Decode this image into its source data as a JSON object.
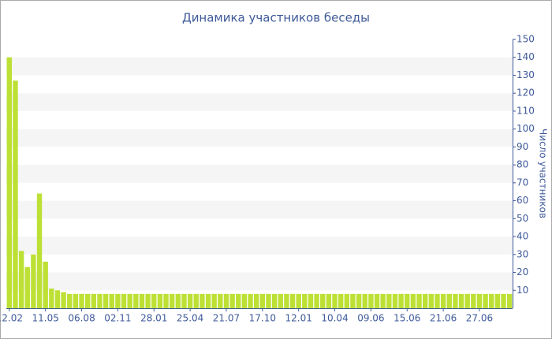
{
  "chart_data": {
    "type": "bar",
    "title": "Динамика участников беседы",
    "y_label": "Число участников",
    "categories": [
      "12.02",
      null,
      null,
      null,
      null,
      null,
      "11.05",
      null,
      null,
      null,
      null,
      null,
      "06.08",
      null,
      null,
      null,
      null,
      null,
      "02.11",
      null,
      null,
      null,
      null,
      null,
      "28.01",
      null,
      null,
      null,
      null,
      null,
      "25.04",
      null,
      null,
      null,
      null,
      null,
      "21.07",
      null,
      null,
      null,
      null,
      null,
      "17.10",
      null,
      null,
      null,
      null,
      null,
      "12.01",
      null,
      null,
      null,
      null,
      null,
      "10.04",
      null,
      null,
      null,
      null,
      null,
      "09.06",
      null,
      null,
      null,
      null,
      null,
      "15.06",
      null,
      null,
      null,
      null,
      null,
      "21.06",
      null,
      null,
      null,
      null,
      null,
      "27.06",
      null,
      null,
      null,
      null,
      null
    ],
    "values": [
      140,
      127,
      32,
      23,
      30,
      64,
      26,
      11,
      10,
      9,
      8,
      8,
      8,
      8,
      8,
      8,
      8,
      8,
      8,
      8,
      8,
      8,
      8,
      8,
      8,
      8,
      8,
      8,
      8,
      8,
      8,
      8,
      8,
      8,
      8,
      8,
      8,
      8,
      8,
      8,
      8,
      8,
      8,
      8,
      8,
      8,
      8,
      8,
      8,
      8,
      8,
      8,
      8,
      8,
      8,
      8,
      8,
      8,
      8,
      8,
      8,
      8,
      8,
      8,
      8,
      8,
      8,
      8,
      8,
      8,
      8,
      8,
      8,
      8,
      8,
      8,
      8,
      8,
      8,
      8,
      8,
      8,
      8,
      8
    ],
    "color": "#bde035",
    "ylim": [
      0,
      150
    ],
    "yticks": [
      10,
      20,
      30,
      40,
      50,
      60,
      70,
      80,
      90,
      100,
      110,
      120,
      130,
      140,
      150
    ],
    "grid": true
  }
}
